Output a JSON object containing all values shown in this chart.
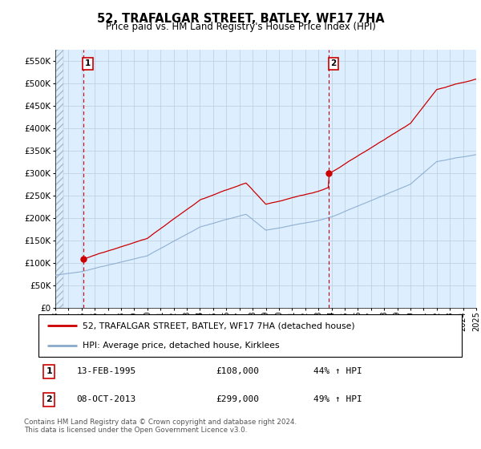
{
  "title": "52, TRAFALGAR STREET, BATLEY, WF17 7HA",
  "subtitle": "Price paid vs. HM Land Registry's House Price Index (HPI)",
  "legend_line1": "52, TRAFALGAR STREET, BATLEY, WF17 7HA (detached house)",
  "legend_line2": "HPI: Average price, detached house, Kirklees",
  "annotation1_label": "1",
  "annotation1_date": "13-FEB-1995",
  "annotation1_price": "£108,000",
  "annotation1_hpi": "44% ↑ HPI",
  "annotation2_label": "2",
  "annotation2_date": "08-OCT-2013",
  "annotation2_price": "£299,000",
  "annotation2_hpi": "49% ↑ HPI",
  "footnote": "Contains HM Land Registry data © Crown copyright and database right 2024.\nThis data is licensed under the Open Government Licence v3.0.",
  "red_line_color": "#cc0000",
  "blue_line_color": "#88aacc",
  "chart_bg_color": "#ddeeff",
  "grid_color": "#bbccdd",
  "vline_color": "#cc0000",
  "annotation_box_color": "#cc0000",
  "y_min": 0,
  "y_max": 575000,
  "y_ticks": [
    0,
    50000,
    100000,
    150000,
    200000,
    250000,
    300000,
    350000,
    400000,
    450000,
    500000,
    550000
  ],
  "x_start_year": 1993,
  "x_end_year": 2025,
  "sale1_year": 1995.11,
  "sale1_price": 108000,
  "sale2_year": 2013.77,
  "sale2_price": 299000
}
